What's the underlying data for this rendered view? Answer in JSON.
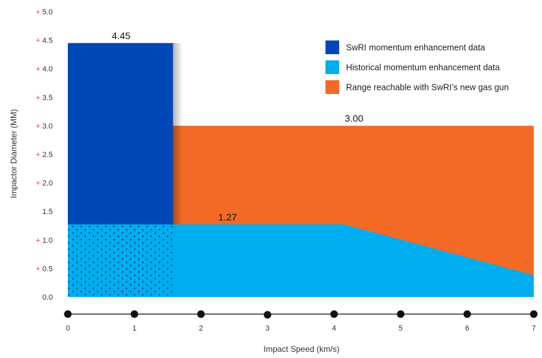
{
  "chart_data": {
    "type": "area",
    "xlabel": "Impact Speed (km/s)",
    "ylabel": "Impactor Diameter (MM)",
    "xlim": [
      0,
      7
    ],
    "ylim": [
      0,
      5.0
    ],
    "x_ticks": [
      "0",
      "1",
      "2",
      "3",
      "4",
      "5",
      "6",
      "7"
    ],
    "y_ticks": [
      {
        "prefix": "+",
        "label": "5.0",
        "value": 5.0
      },
      {
        "prefix": "+",
        "label": "4.5",
        "value": 4.5
      },
      {
        "prefix": "+",
        "label": "4.0",
        "value": 4.0
      },
      {
        "prefix": "+",
        "label": "3.5",
        "value": 3.5
      },
      {
        "prefix": "+",
        "label": "3.0",
        "value": 3.0
      },
      {
        "prefix": "+",
        "label": "2.5",
        "value": 2.5
      },
      {
        "prefix": "+",
        "label": "2.0",
        "value": 2.0
      },
      {
        "prefix": "",
        "label": "1.5",
        "value": 1.5
      },
      {
        "prefix": "+",
        "label": "1.0",
        "value": 1.0
      },
      {
        "prefix": "+",
        "label": "0.5",
        "value": 0.5
      },
      {
        "prefix": "",
        "label": "0.0",
        "value": 0.0
      }
    ],
    "series": [
      {
        "name": "SwRI momentum enhancement data",
        "color": "#0047b8",
        "points": [
          [
            0,
            0
          ],
          [
            0,
            4.45
          ],
          [
            1.58,
            4.45
          ],
          [
            1.58,
            0
          ]
        ]
      },
      {
        "name": "Range reachable with SwRI's new gas gun",
        "color": "#f26a25",
        "points": [
          [
            1.58,
            0
          ],
          [
            1.58,
            3.0
          ],
          [
            7.0,
            3.0
          ],
          [
            7.0,
            0
          ]
        ]
      },
      {
        "name": "Historical momentum enhancement data",
        "color": "#00aeef",
        "points": [
          [
            0,
            0
          ],
          [
            0,
            1.27
          ],
          [
            4.15,
            1.27
          ],
          [
            7.0,
            0.38
          ],
          [
            7.0,
            0
          ]
        ]
      }
    ],
    "data_labels": [
      {
        "text": "4.45",
        "x": 0.8,
        "y": 4.45
      },
      {
        "text": "3.00",
        "x": 4.3,
        "y": 3.0
      },
      {
        "text": "1.27",
        "x": 2.4,
        "y": 1.27
      }
    ],
    "legend": {
      "placement": "top-right",
      "entries": [
        {
          "label": "SwRI momentum enhancement data",
          "color": "#0047b8"
        },
        {
          "label": "Historical momentum enhancement data",
          "color": "#00aeef"
        },
        {
          "label": "Range reachable with SwRI’s new gas gun",
          "color": "#f26a25"
        }
      ]
    },
    "dotted_overlap_region": {
      "x": [
        0,
        1.58
      ],
      "y": [
        0,
        1.27
      ]
    },
    "grid": false
  }
}
